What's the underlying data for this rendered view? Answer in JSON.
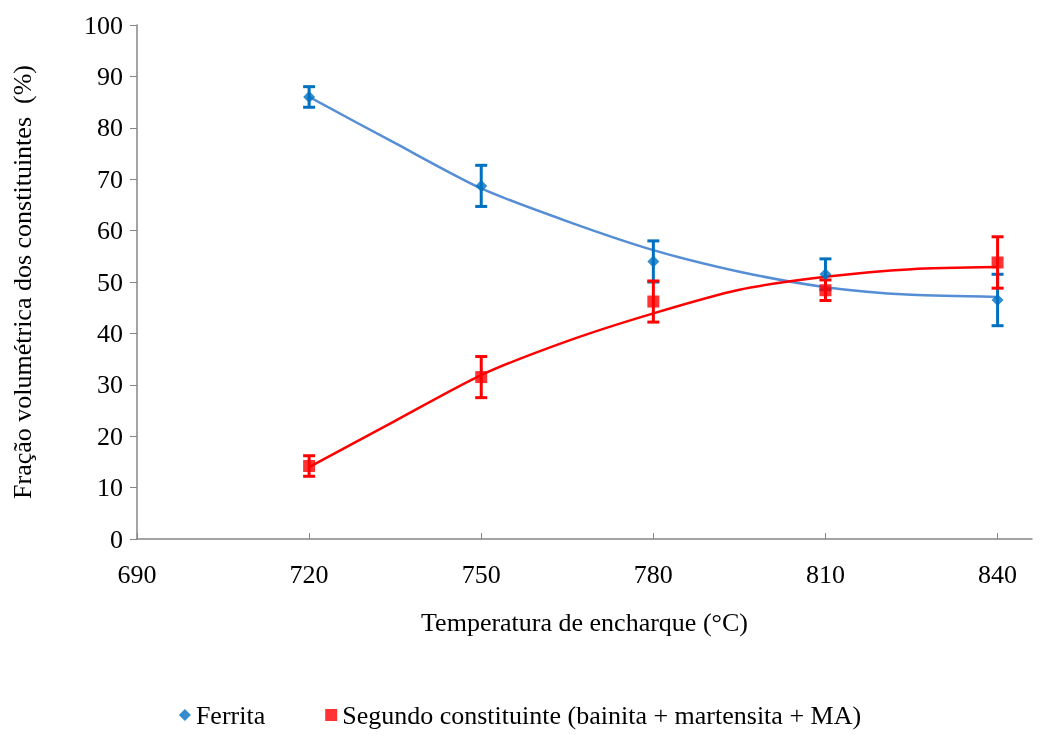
{
  "chart_data": {
    "type": "scatter",
    "xlabel": "Temperatura de encharque (°C)",
    "ylabel": "Fração volumétrica dos constituintes  (%)",
    "xlim": [
      690,
      846
    ],
    "xticks": [
      690,
      720,
      750,
      780,
      810,
      840
    ],
    "ylim": [
      0,
      100
    ],
    "yticks": [
      0,
      10,
      20,
      30,
      40,
      50,
      60,
      70,
      80,
      90,
      100
    ],
    "grid": false,
    "legend": "bottom",
    "series": [
      {
        "name": "Ferrita",
        "marker": "diamond",
        "color": "#0070c0",
        "x": [
          720,
          750,
          780,
          810,
          840
        ],
        "values": [
          86,
          68.7,
          54,
          51.5,
          46.5
        ],
        "errors": [
          2,
          4,
          4,
          3,
          5
        ]
      },
      {
        "name": "Segundo constituinte (bainita + martensita + MA)",
        "marker": "square",
        "color": "#ff0000",
        "x": [
          720,
          750,
          780,
          810,
          840
        ],
        "values": [
          14.2,
          31.5,
          46.2,
          48.4,
          53.8
        ],
        "errors": [
          2,
          4,
          4,
          2,
          5
        ]
      },
      {
        "type": "line",
        "marker": "none",
        "color": "#558ed5",
        "x": [
          720,
          735,
          750,
          765,
          780,
          795,
          810,
          825,
          840
        ],
        "values": [
          86,
          77,
          68.2,
          61.8,
          56.2,
          52,
          49,
          47.5,
          47.1
        ]
      },
      {
        "type": "line",
        "marker": "none",
        "color": "#ff0000",
        "x": [
          720,
          735,
          750,
          765,
          780,
          795,
          810,
          825,
          840
        ],
        "values": [
          14,
          23,
          31.9,
          38.5,
          43.9,
          48.5,
          51,
          52.5,
          52.9
        ]
      }
    ]
  }
}
